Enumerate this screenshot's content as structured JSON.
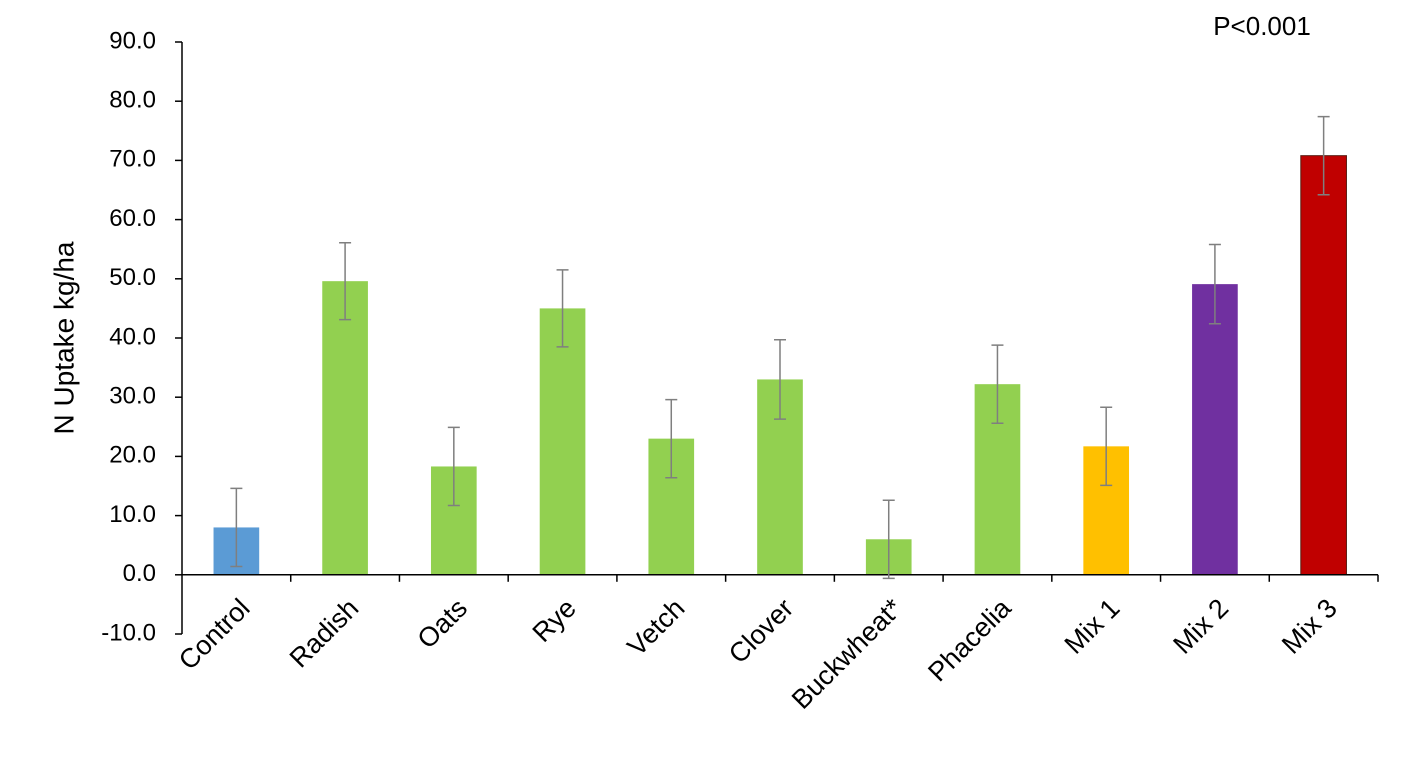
{
  "chart_data": {
    "type": "bar",
    "y_label": "N Uptake kg/ha",
    "annotation": "P<0.001",
    "categories": [
      "Control",
      "Radish",
      "Oats",
      "Rye",
      "Vetch",
      "Clover",
      "Buckwheat*",
      "Phacelia",
      "Mix 1",
      "Mix 2",
      "Mix 3"
    ],
    "values": [
      8.0,
      49.6,
      18.3,
      45.0,
      23.0,
      33.0,
      6.0,
      32.2,
      21.7,
      49.1,
      70.8
    ],
    "errors": [
      6.6,
      6.5,
      6.6,
      6.5,
      6.6,
      6.7,
      6.6,
      6.6,
      6.6,
      6.7,
      6.6
    ],
    "colors": [
      "#5b9bd5",
      "#92d050",
      "#92d050",
      "#92d050",
      "#92d050",
      "#92d050",
      "#92d050",
      "#92d050",
      "#ffc000",
      "#7030a0",
      "#c00000"
    ],
    "ylim": [
      -10,
      90
    ],
    "yticks": [
      {
        "value": -10,
        "label": "-10.0"
      },
      {
        "value": 0,
        "label": "0.0"
      },
      {
        "value": 10,
        "label": "10.0"
      },
      {
        "value": 20,
        "label": "20.0"
      },
      {
        "value": 30,
        "label": "30.0"
      },
      {
        "value": 40,
        "label": "40.0"
      },
      {
        "value": 50,
        "label": "50.0"
      },
      {
        "value": 60,
        "label": "60.0"
      },
      {
        "value": 70,
        "label": "70.0"
      },
      {
        "value": 80,
        "label": "80.0"
      },
      {
        "value": 90,
        "label": "90.0"
      }
    ],
    "grid": false
  }
}
